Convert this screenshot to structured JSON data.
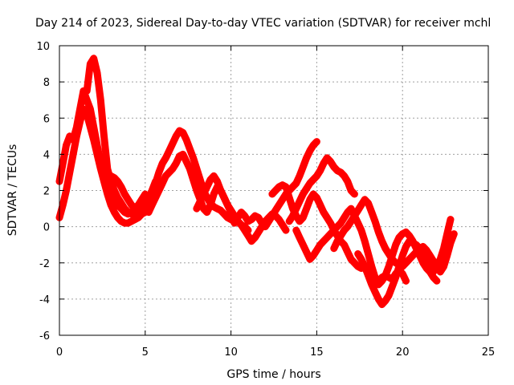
{
  "chart_data": {
    "type": "scatter",
    "title": "Day 214 of 2023, Sidereal Day-to-day VTEC variation (SDTVAR) for receiver mchl",
    "xlabel": "GPS time / hours",
    "ylabel": "SDTVAR / TECUs",
    "xlim": [
      0,
      25
    ],
    "ylim": [
      -6,
      10
    ],
    "xticks": [
      0,
      5,
      10,
      15,
      20,
      25
    ],
    "xtick_labels": [
      "0",
      "5",
      "10",
      "15",
      "20",
      "25"
    ],
    "yticks": [
      -6,
      -4,
      -2,
      0,
      2,
      4,
      6,
      8,
      10
    ],
    "ytick_labels": [
      "-6",
      "-4",
      "-2",
      "0",
      "2",
      "4",
      "6",
      "8",
      "10"
    ],
    "grid": true,
    "marker": "+",
    "color": "#ff0000",
    "series": [
      {
        "name": "s1",
        "x": [
          0.0,
          0.2,
          0.4,
          0.6,
          0.8,
          1.0,
          1.2,
          1.4,
          1.6,
          1.8,
          2.0,
          2.2,
          2.4,
          2.6,
          2.8,
          3.0,
          3.2,
          3.4,
          3.6,
          3.8,
          4.0,
          4.2,
          4.4,
          4.6,
          4.8,
          5.0,
          5.2
        ],
        "y": [
          0.5,
          1.2,
          2.0,
          3.0,
          4.0,
          5.0,
          5.8,
          6.5,
          6.2,
          5.5,
          4.8,
          4.0,
          3.2,
          2.5,
          1.8,
          1.2,
          0.8,
          0.5,
          0.3,
          0.2,
          0.2,
          0.3,
          0.4,
          0.5,
          0.7,
          0.9,
          1.2
        ]
      },
      {
        "name": "s2",
        "x": [
          0.0,
          0.2,
          0.4,
          0.6,
          0.8,
          1.0,
          1.2,
          1.4,
          1.6,
          1.8,
          2.0,
          2.2,
          2.4,
          2.6,
          2.8,
          3.0,
          3.2,
          3.4,
          3.6,
          3.8,
          4.0,
          4.2,
          4.4,
          4.6,
          4.8,
          5.0
        ],
        "y": [
          2.5,
          3.5,
          4.5,
          5.0,
          4.8,
          5.5,
          6.5,
          7.5,
          7.0,
          6.5,
          5.5,
          4.5,
          3.5,
          2.8,
          2.5,
          2.0,
          1.6,
          1.2,
          1.0,
          0.8,
          0.7,
          0.8,
          1.0,
          1.2,
          1.5,
          1.8
        ]
      },
      {
        "name": "s3",
        "x": [
          1.6,
          1.8,
          2.0,
          2.2,
          2.4,
          2.6,
          2.8,
          3.0,
          3.2,
          3.4,
          3.6,
          3.8,
          4.0,
          4.2,
          4.4,
          4.6,
          4.8,
          5.0,
          5.2,
          5.4,
          5.6
        ],
        "y": [
          7.5,
          9.0,
          9.3,
          8.5,
          7.0,
          5.0,
          3.2,
          2.5,
          2.0,
          1.6,
          1.3,
          1.0,
          0.8,
          0.7,
          0.6,
          0.8,
          1.0,
          1.2,
          1.5,
          2.0,
          2.5
        ]
      },
      {
        "name": "s4",
        "x": [
          3.0,
          3.2,
          3.4,
          3.6,
          3.8,
          4.0,
          4.2,
          4.4,
          4.6,
          4.8,
          5.0,
          5.2,
          5.4,
          5.6,
          5.8,
          6.0,
          6.2,
          6.4,
          6.6,
          6.8,
          7.0,
          7.2,
          7.4,
          7.6,
          7.8,
          8.0,
          8.2,
          8.4,
          8.6,
          8.8,
          9.0,
          9.2,
          9.4,
          9.6,
          9.8,
          10.0,
          10.2
        ],
        "y": [
          2.8,
          2.7,
          2.5,
          2.2,
          1.8,
          1.5,
          1.2,
          1.0,
          0.8,
          0.7,
          0.8,
          1.2,
          1.8,
          2.4,
          3.0,
          3.5,
          3.8,
          4.2,
          4.6,
          5.0,
          5.3,
          5.2,
          4.8,
          4.3,
          3.8,
          3.2,
          2.6,
          2.0,
          1.6,
          1.3,
          1.1,
          1.0,
          0.9,
          0.7,
          0.5,
          0.4,
          0.3
        ]
      },
      {
        "name": "s5",
        "x": [
          5.2,
          5.4,
          5.6,
          5.8,
          6.0,
          6.2,
          6.4,
          6.6,
          6.8,
          7.0,
          7.2,
          7.4,
          7.6,
          7.8,
          8.0,
          8.2,
          8.4,
          8.6,
          8.8,
          9.0,
          9.2,
          9.4,
          9.6,
          9.8,
          10.0,
          10.2,
          10.4,
          10.6,
          10.8,
          11.0
        ],
        "y": [
          0.8,
          1.2,
          1.6,
          2.0,
          2.4,
          2.8,
          3.0,
          3.2,
          3.5,
          3.9,
          4.0,
          3.6,
          3.2,
          2.6,
          2.0,
          1.5,
          1.0,
          0.8,
          1.2,
          1.8,
          2.2,
          2.0,
          1.6,
          1.2,
          0.8,
          0.5,
          0.3,
          0.1,
          0.0,
          -0.2
        ]
      },
      {
        "name": "s6",
        "x": [
          8.0,
          8.2,
          8.4,
          8.6,
          8.8,
          9.0,
          9.2,
          9.4,
          9.6,
          9.8,
          10.0,
          10.2,
          10.4,
          10.6,
          10.8,
          11.0,
          11.2,
          11.4,
          11.6,
          11.8,
          12.0,
          12.2,
          12.4,
          12.6,
          12.8,
          13.0,
          13.2
        ],
        "y": [
          1.0,
          1.4,
          1.8,
          2.2,
          2.6,
          2.8,
          2.5,
          2.0,
          1.6,
          1.2,
          0.9,
          0.6,
          0.3,
          0.1,
          -0.2,
          -0.5,
          -0.8,
          -0.6,
          -0.3,
          0.0,
          0.3,
          0.5,
          0.7,
          0.6,
          0.4,
          0.1,
          -0.2
        ]
      },
      {
        "name": "s7",
        "x": [
          10.2,
          10.4,
          10.6,
          10.8,
          11.0,
          11.2,
          11.4,
          11.6,
          11.8,
          12.0,
          12.2,
          12.4,
          12.6,
          12.8,
          13.0,
          13.2,
          13.4,
          13.6,
          13.8,
          14.0,
          14.2,
          14.4,
          14.6,
          14.8,
          15.0
        ],
        "y": [
          0.2,
          0.5,
          0.8,
          0.6,
          0.3,
          0.4,
          0.6,
          0.5,
          0.2,
          0.0,
          0.3,
          0.6,
          0.9,
          1.2,
          1.5,
          1.8,
          2.0,
          2.2,
          2.4,
          2.8,
          3.3,
          3.8,
          4.2,
          4.5,
          4.7
        ]
      },
      {
        "name": "s8",
        "x": [
          12.4,
          12.6,
          12.8,
          13.0,
          13.2,
          13.4,
          13.6,
          13.8,
          14.0,
          14.2,
          14.4,
          14.6,
          14.8,
          15.0,
          15.2,
          15.4,
          15.6,
          15.8,
          16.0,
          16.2,
          16.4,
          16.6,
          16.8,
          17.0,
          17.2,
          17.4,
          17.6,
          17.8,
          18.0,
          18.2,
          18.4,
          18.6,
          18.8,
          19.0,
          19.2,
          19.4,
          19.6,
          19.8,
          20.0,
          20.2
        ],
        "y": [
          1.8,
          2.0,
          2.2,
          2.3,
          2.2,
          1.6,
          1.0,
          0.6,
          0.3,
          0.5,
          1.0,
          1.5,
          1.8,
          1.6,
          1.2,
          0.8,
          0.5,
          0.2,
          -0.2,
          -0.5,
          -0.8,
          -1.0,
          -1.4,
          -1.8,
          -2.0,
          -2.2,
          -2.3,
          -2.2,
          -2.5,
          -2.9,
          -3.2,
          -3.0,
          -2.8,
          -2.7,
          -2.8,
          -2.9,
          -2.6,
          -2.4,
          -2.6,
          -3.0
        ]
      },
      {
        "name": "s9",
        "x": [
          13.4,
          13.6,
          13.8,
          14.0,
          14.2,
          14.4,
          14.6,
          14.8,
          15.0,
          15.2,
          15.4,
          15.6,
          15.8,
          16.0,
          16.2,
          16.4,
          16.6,
          16.8,
          17.0,
          17.2
        ],
        "y": [
          0.3,
          0.6,
          1.0,
          1.4,
          1.8,
          2.1,
          2.4,
          2.6,
          2.8,
          3.1,
          3.5,
          3.8,
          3.6,
          3.3,
          3.1,
          3.0,
          2.8,
          2.5,
          2.0,
          1.8
        ]
      },
      {
        "name": "s10",
        "x": [
          13.8,
          14.0,
          14.2,
          14.4,
          14.6,
          14.8,
          15.0,
          15.2,
          15.4,
          15.6,
          15.8,
          16.0,
          16.2,
          16.4,
          16.6,
          16.8,
          17.0,
          17.2,
          17.4,
          17.6,
          17.8,
          18.0,
          18.2,
          18.4,
          18.6,
          18.8,
          19.0,
          19.2,
          19.4,
          19.6,
          19.8,
          20.0,
          20.2,
          20.4,
          20.6,
          20.8,
          21.0,
          21.2,
          21.4,
          21.6,
          21.8,
          22.0
        ],
        "y": [
          -0.2,
          -0.6,
          -1.0,
          -1.4,
          -1.8,
          -1.6,
          -1.3,
          -1.0,
          -0.8,
          -0.6,
          -0.4,
          -0.2,
          0.0,
          0.2,
          0.5,
          0.8,
          1.0,
          0.6,
          0.2,
          -0.2,
          -0.8,
          -1.5,
          -2.2,
          -2.8,
          -3.2,
          -3.0,
          -2.7,
          -2.2,
          -1.6,
          -1.0,
          -0.6,
          -0.4,
          -0.3,
          -0.5,
          -0.8,
          -1.2,
          -1.6,
          -2.0,
          -2.3,
          -2.5,
          -2.8,
          -3.0
        ]
      },
      {
        "name": "s11",
        "x": [
          16.0,
          16.2,
          16.4,
          16.6,
          16.8,
          17.0,
          17.2,
          17.4,
          17.6,
          17.8,
          18.0,
          18.2,
          18.4,
          18.6,
          18.8,
          19.0,
          19.2,
          19.4,
          19.6,
          19.8,
          20.0,
          20.2,
          20.4,
          20.6,
          20.8,
          21.0,
          21.2,
          21.4,
          21.6,
          21.8,
          22.0,
          22.2,
          22.4,
          22.6,
          22.8,
          23.0
        ],
        "y": [
          -1.2,
          -0.8,
          -0.5,
          -0.2,
          0.0,
          0.3,
          0.6,
          0.9,
          1.2,
          1.5,
          1.3,
          0.8,
          0.3,
          -0.3,
          -0.8,
          -1.2,
          -1.5,
          -1.8,
          -2.0,
          -2.1,
          -2.2,
          -2.0,
          -1.8,
          -1.6,
          -1.4,
          -1.2,
          -1.1,
          -1.3,
          -1.6,
          -1.9,
          -2.2,
          -2.5,
          -2.2,
          -1.6,
          -0.9,
          -0.4
        ]
      },
      {
        "name": "s12",
        "x": [
          17.4,
          17.6,
          17.8,
          18.0,
          18.2,
          18.4,
          18.6,
          18.8,
          19.0,
          19.2,
          19.4,
          19.6,
          19.8,
          20.0,
          20.2,
          20.4,
          20.6,
          20.8,
          21.0,
          21.2,
          21.4,
          21.6,
          21.8,
          22.0,
          22.2,
          22.4,
          22.6,
          22.8
        ],
        "y": [
          -1.5,
          -1.8,
          -2.2,
          -2.7,
          -3.2,
          -3.6,
          -4.0,
          -4.3,
          -4.1,
          -3.8,
          -3.3,
          -2.8,
          -2.2,
          -1.6,
          -1.1,
          -0.8,
          -0.9,
          -1.0,
          -1.2,
          -1.5,
          -1.8,
          -2.2,
          -2.5,
          -2.2,
          -1.8,
          -1.2,
          -0.4,
          0.4
        ]
      }
    ]
  }
}
